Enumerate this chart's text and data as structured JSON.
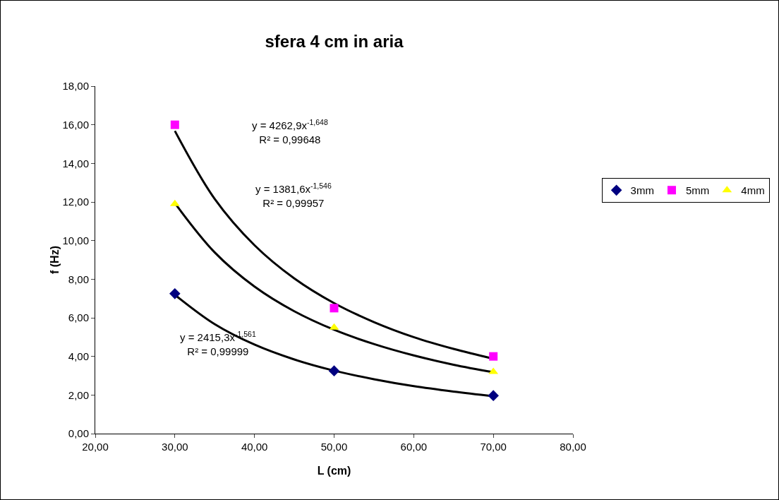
{
  "chart_data": {
    "type": "scatter",
    "title": "sfera 4 cm in aria",
    "xlabel": "L (cm)",
    "ylabel": "f (Hz)",
    "xlim": [
      20,
      80
    ],
    "xticks": [
      {
        "value": 20,
        "label": "20,00"
      },
      {
        "value": 30,
        "label": "30,00"
      },
      {
        "value": 40,
        "label": "40,00"
      },
      {
        "value": 50,
        "label": "50,00"
      },
      {
        "value": 60,
        "label": "60,00"
      },
      {
        "value": 70,
        "label": "70,00"
      },
      {
        "value": 80,
        "label": "80,00"
      }
    ],
    "ylim": [
      0,
      18
    ],
    "yticks": [
      {
        "value": 0,
        "label": "0,00"
      },
      {
        "value": 2,
        "label": "2,00"
      },
      {
        "value": 4,
        "label": "4,00"
      },
      {
        "value": 6,
        "label": "6,00"
      },
      {
        "value": 8,
        "label": "8,00"
      },
      {
        "value": 10,
        "label": "10,00"
      },
      {
        "value": 12,
        "label": "12,00"
      },
      {
        "value": 14,
        "label": "14,00"
      },
      {
        "value": 16,
        "label": "16,00"
      },
      {
        "value": 18,
        "label": "18,00"
      }
    ],
    "grid": false,
    "legend": "right",
    "x": [
      30,
      50,
      70
    ],
    "series": [
      {
        "name": "3mm",
        "color": "#000080",
        "marker": "diamond",
        "values": [
          7.25,
          3.25,
          1.97
        ]
      },
      {
        "name": "5mm",
        "color": "#ff00ff",
        "marker": "square",
        "values": [
          16,
          6.5,
          4.0
        ]
      },
      {
        "name": "4mm",
        "color": "#ffff00",
        "marker": "triangle",
        "values": [
          11.9,
          5.5,
          3.2
        ]
      },
      {
        "type": "line",
        "color": "#000000",
        "marker": "none",
        "x": [
          30,
          35,
          40,
          45,
          50,
          55,
          60,
          65,
          70
        ],
        "values": [
          15.68,
          12.16,
          9.76,
          8.04,
          6.76,
          5.78,
          5.0,
          4.39,
          3.88
        ]
      },
      {
        "type": "line",
        "color": "#000000",
        "marker": "none",
        "x": [
          30,
          35,
          40,
          45,
          50,
          55,
          60,
          65,
          70
        ],
        "values": [
          11.94,
          9.39,
          7.62,
          6.34,
          5.38,
          4.64,
          4.05,
          3.57,
          3.18
        ]
      },
      {
        "type": "line",
        "color": "#000000",
        "marker": "none",
        "x": [
          30,
          35,
          40,
          45,
          50,
          55,
          60,
          65,
          70
        ],
        "values": [
          7.19,
          5.67,
          4.61,
          3.84,
          3.26,
          2.82,
          2.46,
          2.18,
          1.94
        ]
      }
    ],
    "annotations": [
      "y = 4262,9x$^{-1,648}$\nR² = 0,99648",
      "y = 1381,6x$^{-1,546}$\nR² = 0,99957",
      "y = 2415,3x$^{-1,561}$\nR² = 0,99999"
    ]
  }
}
